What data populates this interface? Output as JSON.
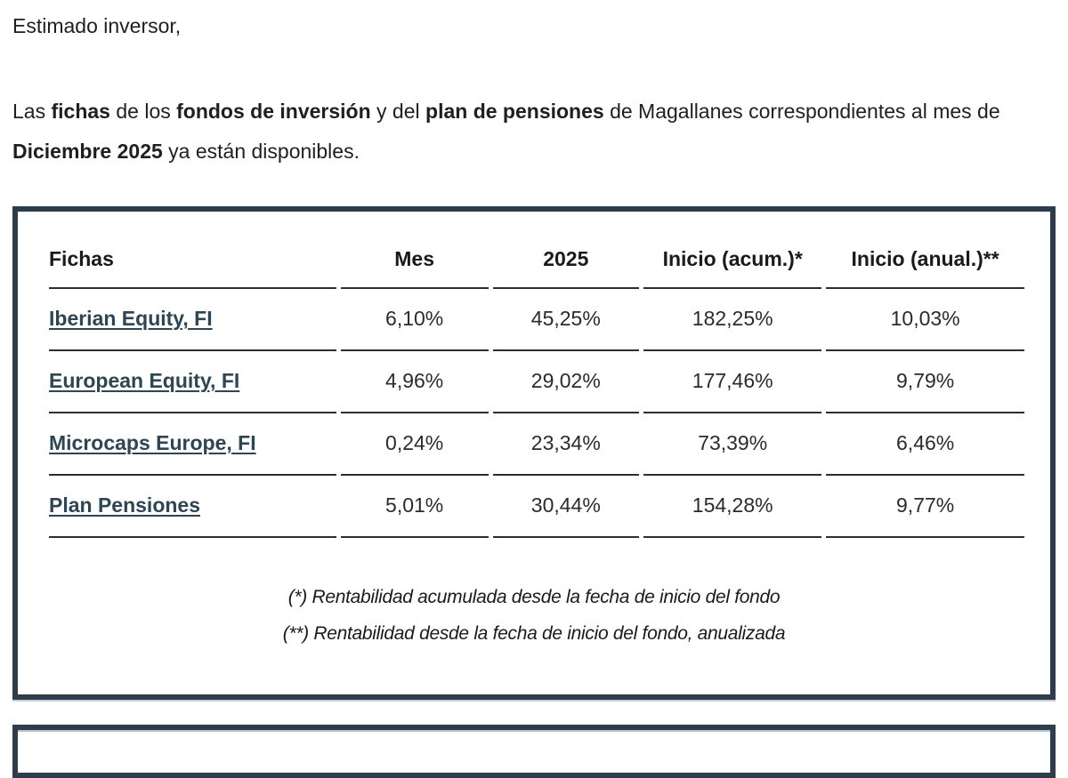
{
  "greeting": "Estimado inversor,",
  "intro": {
    "segments": [
      {
        "text": "Las "
      },
      {
        "text": "fichas"
      },
      {
        "text": " de los "
      },
      {
        "text": "fondos de inversión"
      },
      {
        "text": " y del "
      },
      {
        "text": "plan de pensiones"
      },
      {
        "text": " de Magallanes correspondientes al mes de "
      },
      {
        "text": "Diciembre 2025"
      },
      {
        "text": " ya están disponibles."
      }
    ]
  },
  "table": {
    "headers": [
      "Fichas",
      "Mes",
      "2025",
      "Inicio (acum.)*",
      "Inicio (anual.)**"
    ],
    "rows": [
      {
        "name": "Iberian Equity, FI",
        "mes": "6,10%",
        "ytd_2025": "45,25%",
        "inicio_acum": "182,25%",
        "inicio_anual": "10,03%"
      },
      {
        "name": "European Equity, FI",
        "mes": "4,96%",
        "ytd_2025": "29,02%",
        "inicio_acum": "177,46%",
        "inicio_anual": "9,79%"
      },
      {
        "name": "Microcaps Europe, FI",
        "mes": "0,24%",
        "ytd_2025": "23,34%",
        "inicio_acum": "73,39%",
        "inicio_anual": "6,46%"
      },
      {
        "name": "Plan Pensiones",
        "mes": "5,01%",
        "ytd_2025": "30,44%",
        "inicio_acum": "154,28%",
        "inicio_anual": "9,77%"
      }
    ]
  },
  "footnotes": [
    "(*) Rentabilidad acumulada desde la fecha de inicio del fondo",
    "(**) Rentabilidad desde la fecha de inicio del fondo, anualizada"
  ],
  "colors": {
    "box_border": "#2e3d4b",
    "link": "#2e4553",
    "table_rule": "#2e2e2e",
    "body_text": "#1f1f1f"
  }
}
